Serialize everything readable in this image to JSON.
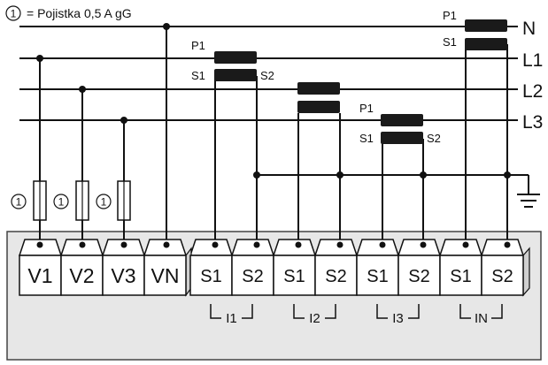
{
  "legend": {
    "symbol": "1",
    "text": "= Pojistka 0,5 A gG"
  },
  "lines": [
    "N",
    "L1",
    "L2",
    "L3"
  ],
  "ct_labels": {
    "l1": {
      "p1": "P1",
      "s1": "S1",
      "s2": "S2"
    },
    "l3": {
      "p1": "P1",
      "s1": "S1",
      "s2": "S2"
    },
    "n": {
      "p1": "P1",
      "s1": "S1"
    }
  },
  "fuse_label": "1",
  "terminals": [
    "V1",
    "V2",
    "V3",
    "VN",
    "S1",
    "S2",
    "S1",
    "S2",
    "S1",
    "S2",
    "S1",
    "S2"
  ],
  "groups": [
    "I1",
    "I2",
    "I3",
    "IN"
  ]
}
